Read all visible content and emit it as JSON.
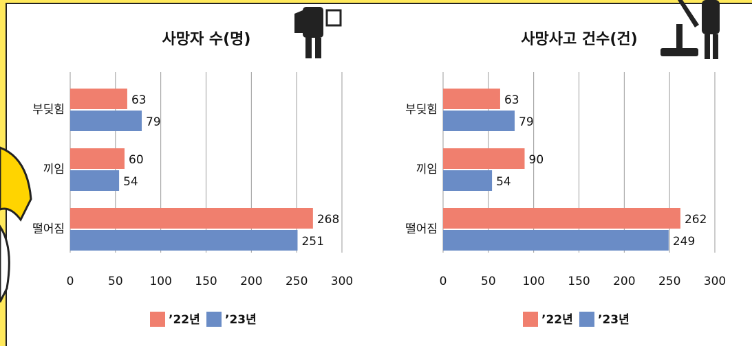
{
  "chart_data": [
    {
      "type": "bar",
      "orientation": "horizontal",
      "title": "사망자 수(명)",
      "categories": [
        "부딪힘",
        "끼임",
        "떨어짐"
      ],
      "series": [
        {
          "name": "’22년",
          "color": "#f07f6e",
          "values": [
            63,
            60,
            268
          ]
        },
        {
          "name": "’23년",
          "color": "#6a8cc6",
          "values": [
            79,
            54,
            251
          ]
        }
      ],
      "xlim": [
        0,
        300
      ],
      "xticks": [
        0,
        50,
        100,
        150,
        200,
        250,
        300
      ],
      "grid": true,
      "legend": "bottom"
    },
    {
      "type": "bar",
      "orientation": "horizontal",
      "title": "사망사고 건수(건)",
      "categories": [
        "부딪힘",
        "끼임",
        "떨어짐"
      ],
      "series": [
        {
          "name": "’22년",
          "color": "#f07f6e",
          "values": [
            63,
            90,
            262
          ]
        },
        {
          "name": "’23년",
          "color": "#6a8cc6",
          "values": [
            79,
            54,
            249
          ]
        }
      ],
      "xlim": [
        0,
        300
      ],
      "xticks": [
        0,
        50,
        100,
        150,
        200,
        250,
        300
      ],
      "grid": true,
      "legend": "bottom"
    }
  ]
}
